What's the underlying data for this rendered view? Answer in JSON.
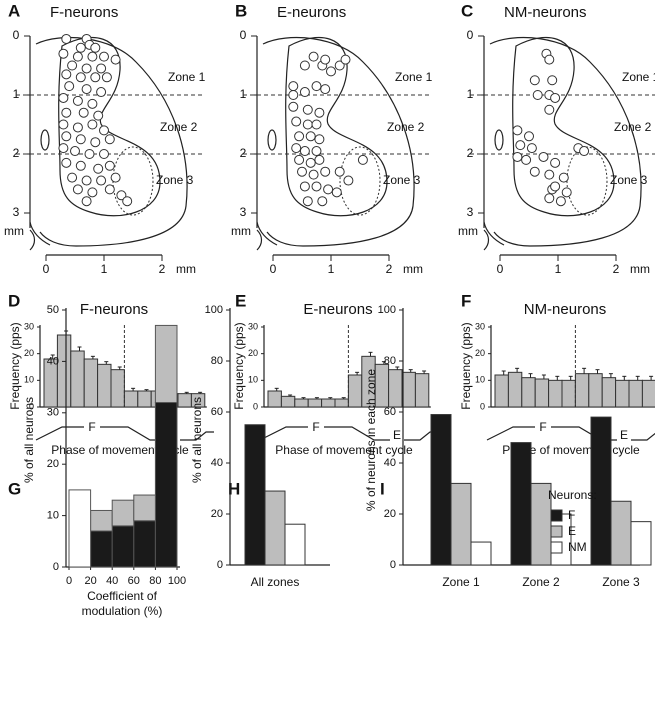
{
  "chart_data": [
    {
      "type": "scatter",
      "panel": "A",
      "title": "F-neurons",
      "x_label": "mm",
      "y_label": "mm",
      "xlim": [
        0,
        2
      ],
      "xticks": [
        0,
        1,
        2
      ],
      "ylim": [
        0,
        3
      ],
      "yticks": [
        0,
        1,
        2,
        3
      ],
      "y_inverted": true,
      "zone_lines": [
        1,
        2
      ],
      "zone_labels": [
        "Zone 1",
        "Zone 2",
        "Zone 3"
      ],
      "x": [
        0.35,
        0.7,
        0.75,
        0.6,
        0.85,
        0.3,
        0.55,
        0.8,
        1.0,
        1.2,
        0.45,
        0.7,
        0.95,
        0.35,
        0.6,
        0.85,
        1.05,
        0.4,
        0.7,
        0.95,
        0.3,
        0.55,
        0.8,
        0.35,
        0.65,
        0.9,
        0.3,
        0.55,
        0.8,
        1.0,
        0.35,
        0.6,
        0.85,
        1.1,
        0.3,
        0.5,
        0.75,
        1.0,
        0.35,
        0.6,
        0.9,
        1.1,
        0.45,
        0.7,
        0.95,
        0.55,
        0.8,
        1.1,
        1.3,
        1.4,
        0.7,
        1.2
      ],
      "y": [
        0.05,
        0.05,
        0.15,
        0.2,
        0.2,
        0.3,
        0.35,
        0.35,
        0.35,
        0.4,
        0.5,
        0.55,
        0.55,
        0.65,
        0.7,
        0.7,
        0.7,
        0.85,
        0.9,
        0.95,
        1.05,
        1.1,
        1.15,
        1.3,
        1.3,
        1.35,
        1.5,
        1.55,
        1.5,
        1.6,
        1.7,
        1.75,
        1.8,
        1.75,
        1.9,
        1.95,
        2.0,
        2.0,
        2.15,
        2.2,
        2.25,
        2.2,
        2.4,
        2.45,
        2.45,
        2.6,
        2.65,
        2.6,
        2.7,
        2.8,
        2.8,
        2.4
      ]
    },
    {
      "type": "scatter",
      "panel": "B",
      "title": "E-neurons",
      "x_label": "mm",
      "y_label": "mm",
      "xlim": [
        0,
        2
      ],
      "xticks": [
        0,
        1,
        2
      ],
      "ylim": [
        0,
        3
      ],
      "yticks": [
        0,
        1,
        2,
        3
      ],
      "y_inverted": true,
      "zone_lines": [
        1,
        2
      ],
      "zone_labels": [
        "Zone 1",
        "Zone 2",
        "Zone 3"
      ],
      "x": [
        0.55,
        0.7,
        0.85,
        1.0,
        1.15,
        1.25,
        0.35,
        0.35,
        0.55,
        0.75,
        0.9,
        0.35,
        0.6,
        0.8,
        0.4,
        0.6,
        0.75,
        0.45,
        0.65,
        0.8,
        0.4,
        0.55,
        0.75,
        0.45,
        0.65,
        0.8,
        0.5,
        0.7,
        0.9,
        0.55,
        0.75,
        0.95,
        0.6,
        0.85,
        1.1,
        1.15,
        1.3,
        1.55,
        0.9
      ],
      "y": [
        0.5,
        0.35,
        0.5,
        0.6,
        0.5,
        0.4,
        0.85,
        1.0,
        0.95,
        0.85,
        0.9,
        1.2,
        1.25,
        1.3,
        1.45,
        1.5,
        1.5,
        1.7,
        1.7,
        1.75,
        1.9,
        1.95,
        1.95,
        2.1,
        2.15,
        2.1,
        2.3,
        2.35,
        2.3,
        2.55,
        2.55,
        2.6,
        2.8,
        2.8,
        2.65,
        2.3,
        2.45,
        2.1,
        0.4
      ]
    },
    {
      "type": "scatter",
      "panel": "C",
      "title": "NM-neurons",
      "x_label": "mm",
      "y_label": "mm",
      "xlim": [
        0,
        2
      ],
      "xticks": [
        0,
        1,
        2
      ],
      "ylim": [
        0,
        3
      ],
      "yticks": [
        0,
        1,
        2,
        3
      ],
      "y_inverted": true,
      "zone_lines": [
        1,
        2
      ],
      "zone_labels": [
        "Zone 1",
        "Zone 2",
        "Zone 3"
      ],
      "x": [
        0.8,
        0.85,
        0.6,
        0.9,
        0.65,
        0.85,
        0.95,
        0.85,
        0.3,
        0.5,
        0.35,
        0.55,
        0.3,
        0.45,
        0.75,
        0.95,
        1.35,
        1.45,
        0.85,
        1.1,
        0.9,
        1.15,
        0.85,
        1.05,
        0.6,
        0.95
      ],
      "y": [
        0.3,
        0.4,
        0.75,
        0.75,
        1.0,
        1.0,
        1.05,
        1.25,
        1.6,
        1.7,
        1.85,
        1.9,
        2.05,
        2.1,
        2.05,
        2.15,
        1.9,
        1.95,
        2.35,
        2.4,
        2.6,
        2.65,
        2.75,
        2.8,
        2.3,
        2.55
      ]
    },
    {
      "type": "bar_error",
      "panel": "D",
      "title": "F-neurons",
      "y_label": "Frequency (pps)",
      "x_label": "Phase of movement cycle",
      "phase_labels": [
        "F",
        "E"
      ],
      "ylim": [
        0,
        30
      ],
      "yticks": [
        0,
        10,
        20,
        30
      ],
      "color": "#bdbdbd",
      "values": [
        18,
        27,
        21,
        18,
        16,
        14,
        6,
        6,
        6,
        5,
        5,
        5
      ],
      "errors": [
        1.5,
        1.5,
        1.5,
        1,
        1,
        1,
        1,
        0.5,
        1,
        0.5,
        0.5,
        0.5
      ]
    },
    {
      "type": "bar_error",
      "panel": "E",
      "title": "E-neurons",
      "y_label": "Frequency (pps)",
      "x_label": "Phase of movement cycle",
      "phase_labels": [
        "F",
        "E"
      ],
      "ylim": [
        0,
        30
      ],
      "yticks": [
        0,
        10,
        20,
        30
      ],
      "color": "#bdbdbd",
      "values": [
        6,
        4,
        3,
        3,
        3,
        3,
        12,
        19,
        16,
        14,
        13,
        12.5
      ],
      "errors": [
        1,
        0.5,
        0.5,
        0.5,
        0.5,
        0.5,
        1,
        1.5,
        1,
        1,
        1,
        1
      ]
    },
    {
      "type": "bar_error",
      "panel": "F",
      "title": "NM-neurons",
      "y_label": "Frequency (pps)",
      "x_label": "Phase of movement cycle",
      "phase_labels": [
        "F",
        "E"
      ],
      "ylim": [
        0,
        30
      ],
      "yticks": [
        0,
        10,
        20,
        30
      ],
      "color": "#bdbdbd",
      "values": [
        12,
        13,
        11,
        10.5,
        10,
        10,
        12.5,
        12.5,
        11,
        10,
        10,
        10
      ],
      "errors": [
        1.5,
        1.5,
        1.5,
        1.5,
        1.5,
        1.5,
        2,
        1.5,
        1.5,
        1.5,
        1.5,
        1.5
      ]
    },
    {
      "type": "histogram",
      "panel": "G",
      "stacked": true,
      "y_label": "% of all neurons",
      "x_label": [
        "Coefficient of",
        "modulation (%)"
      ],
      "bins": [
        0,
        20,
        40,
        60,
        80,
        100
      ],
      "xlim": [
        0,
        100
      ],
      "xticks": [
        0,
        20,
        40,
        60,
        80,
        100
      ],
      "ylim": [
        0,
        50
      ],
      "yticks": [
        0,
        10,
        20,
        30,
        40,
        50
      ],
      "series": [
        {
          "name": "F",
          "color": "#1a1a1a",
          "values": [
            0,
            7,
            8,
            9,
            32
          ]
        },
        {
          "name": "E",
          "color": "#bdbdbd",
          "values": [
            0,
            4,
            5,
            5,
            15
          ]
        },
        {
          "name": "NM",
          "color": "#ffffff",
          "values": [
            15,
            0,
            0,
            0,
            0
          ]
        }
      ]
    },
    {
      "type": "bar",
      "panel": "H",
      "y_label": "% of all neurons",
      "categories": [
        "All zones"
      ],
      "ylim": [
        0,
        100
      ],
      "yticks": [
        0,
        20,
        40,
        60,
        80,
        100
      ],
      "series": [
        {
          "name": "F",
          "color": "#1a1a1a",
          "values": [
            55
          ]
        },
        {
          "name": "E",
          "color": "#bdbdbd",
          "values": [
            29
          ]
        },
        {
          "name": "NM",
          "color": "#ffffff",
          "values": [
            16
          ]
        }
      ]
    },
    {
      "type": "bar",
      "panel": "I",
      "y_label": "% of neurons in each zone",
      "categories": [
        "Zone 1",
        "Zone 2",
        "Zone 3"
      ],
      "ylim": [
        0,
        100
      ],
      "yticks": [
        0,
        20,
        40,
        60,
        80,
        100
      ],
      "legend_title": "Neurons:",
      "legend": "top-right",
      "series": [
        {
          "name": "F",
          "color": "#1a1a1a",
          "values": [
            59,
            48,
            58
          ]
        },
        {
          "name": "E",
          "color": "#bdbdbd",
          "values": [
            32,
            32,
            25
          ]
        },
        {
          "name": "NM",
          "color": "#ffffff",
          "values": [
            9,
            20,
            17
          ]
        }
      ]
    }
  ]
}
